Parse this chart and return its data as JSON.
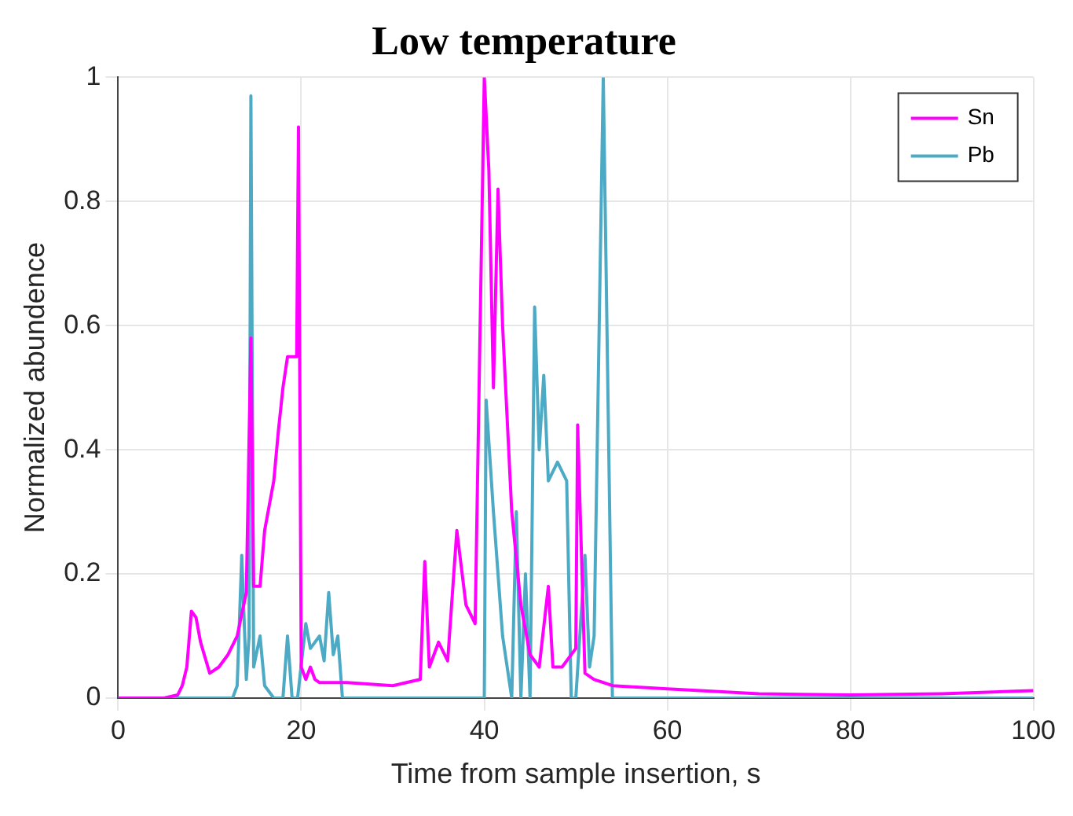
{
  "chart_data": {
    "type": "line",
    "title": "Low temperature",
    "xlabel": "Time from sample insertion, s",
    "ylabel": "Normalized abundence",
    "xlim": [
      0,
      100
    ],
    "xticks": [
      0,
      20,
      40,
      60,
      80,
      100
    ],
    "ylim": [
      0,
      1
    ],
    "yticks": [
      0,
      0.2,
      0.4,
      0.6,
      0.8,
      1
    ],
    "grid": true,
    "legend": "top right",
    "series": [
      {
        "name": "Sn",
        "color": "#ff00ff",
        "x": [
          0,
          5,
          6.5,
          7,
          7.5,
          8,
          8.5,
          9,
          10,
          11,
          12,
          13,
          14,
          14.5,
          14.8,
          15.5,
          16,
          17,
          17.5,
          18,
          18.5,
          19.5,
          19.7,
          20,
          20.5,
          21,
          21.5,
          22,
          25,
          30,
          33,
          33.5,
          34,
          35,
          36,
          37,
          38,
          39,
          40,
          40.5,
          41,
          41.5,
          42,
          43,
          44,
          45,
          46,
          47,
          47.5,
          48.5,
          50,
          50.2,
          51,
          52,
          54,
          60,
          70,
          80,
          90,
          100
        ],
        "values": [
          0,
          0,
          0.005,
          0.02,
          0.05,
          0.14,
          0.13,
          0.09,
          0.04,
          0.05,
          0.07,
          0.1,
          0.17,
          0.58,
          0.18,
          0.18,
          0.27,
          0.35,
          0.43,
          0.5,
          0.55,
          0.55,
          0.92,
          0.05,
          0.03,
          0.05,
          0.03,
          0.025,
          0.025,
          0.02,
          0.03,
          0.22,
          0.05,
          0.09,
          0.06,
          0.27,
          0.15,
          0.12,
          1,
          0.85,
          0.5,
          0.82,
          0.6,
          0.3,
          0.15,
          0.07,
          0.05,
          0.18,
          0.05,
          0.05,
          0.08,
          0.44,
          0.04,
          0.03,
          0.02,
          0.015,
          0.007,
          0.005,
          0.007,
          0.012
        ]
      },
      {
        "name": "Pb",
        "color": "#4daac4",
        "x": [
          0,
          12.5,
          13,
          13.5,
          14,
          14.3,
          14.5,
          14.8,
          15.5,
          16,
          17,
          18,
          18.5,
          19,
          19.6,
          20.5,
          21,
          22,
          22.5,
          23,
          23.5,
          24,
          24.5,
          40,
          40.2,
          41,
          42,
          43,
          43.5,
          44,
          44.5,
          45,
          45.5,
          46,
          46.5,
          47,
          48,
          49,
          49.5,
          50,
          51,
          51.5,
          52,
          53,
          54,
          100
        ],
        "values": [
          0,
          0,
          0.02,
          0.23,
          0.03,
          0.1,
          0.97,
          0.05,
          0.1,
          0.02,
          0,
          0,
          0.1,
          0,
          0,
          0.12,
          0.08,
          0.1,
          0.06,
          0.17,
          0.07,
          0.1,
          0,
          0,
          0.48,
          0.3,
          0.1,
          0,
          0.3,
          0,
          0.2,
          0,
          0.63,
          0.4,
          0.52,
          0.35,
          0.38,
          0.35,
          0,
          0,
          0.23,
          0.05,
          0.1,
          1,
          0,
          0
        ]
      }
    ]
  }
}
